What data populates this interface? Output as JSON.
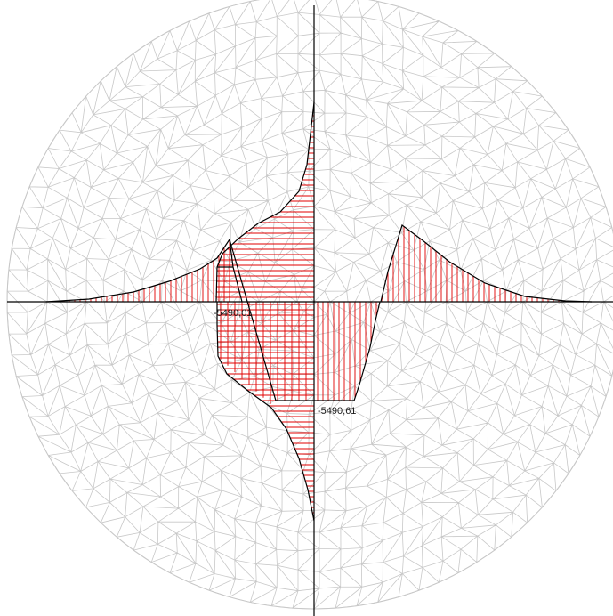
{
  "labels": {
    "left_extreme": "-5490,01",
    "right_extreme": "-5490,61"
  },
  "colors": {
    "background": "#ffffff",
    "mesh": "#c8c8c8",
    "axes": "#000000",
    "hatch": "#e00000",
    "outline": "#000000"
  }
}
